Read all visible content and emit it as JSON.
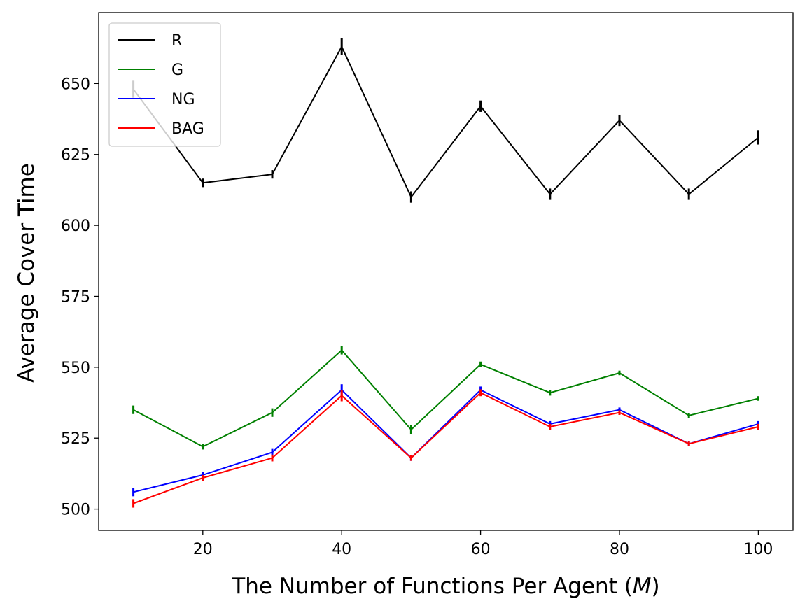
{
  "chart_data": {
    "type": "line",
    "title": "",
    "xlabel": "The Number of Functions Per Agent (M)",
    "xlabel_parts": {
      "text": "The Number of Functions Per Agent (",
      "var": "M",
      "close": ")"
    },
    "ylabel": "Average Cover Time",
    "xlim": [
      5,
      105
    ],
    "ylim": [
      492.5,
      675
    ],
    "xticks": [
      20,
      40,
      60,
      80,
      100
    ],
    "yticks": [
      500,
      525,
      550,
      575,
      600,
      625,
      650
    ],
    "grid": false,
    "legend_position": "upper-left",
    "x": [
      10,
      20,
      30,
      40,
      50,
      60,
      70,
      80,
      90,
      100
    ],
    "series": [
      {
        "name": "R",
        "color": "#000000",
        "values": [
          648,
          615,
          618,
          663,
          610,
          642,
          611,
          637,
          611,
          631
        ],
        "errors": [
          3,
          1.5,
          1.5,
          3,
          2,
          2,
          2,
          2,
          2,
          2.5
        ]
      },
      {
        "name": "G",
        "color": "#008000",
        "values": [
          535,
          522,
          534,
          556,
          528,
          551,
          541,
          548,
          533,
          539
        ],
        "errors": [
          1.5,
          1,
          1.5,
          1.5,
          1.5,
          1,
          1,
          0.8,
          0.8,
          0.8
        ]
      },
      {
        "name": "NG",
        "color": "#0000ff",
        "values": [
          506,
          512,
          520,
          542,
          518,
          542,
          530,
          535,
          523,
          530
        ],
        "errors": [
          1.5,
          1,
          1.2,
          2,
          1,
          1.2,
          1,
          0.8,
          0.8,
          1
        ]
      },
      {
        "name": "BAG",
        "color": "#ff0000",
        "values": [
          502,
          511,
          518,
          540,
          518,
          541,
          529,
          534,
          523,
          529
        ],
        "errors": [
          1.5,
          1,
          1.2,
          2,
          1,
          1.2,
          1,
          0.8,
          0.8,
          1
        ]
      }
    ]
  }
}
